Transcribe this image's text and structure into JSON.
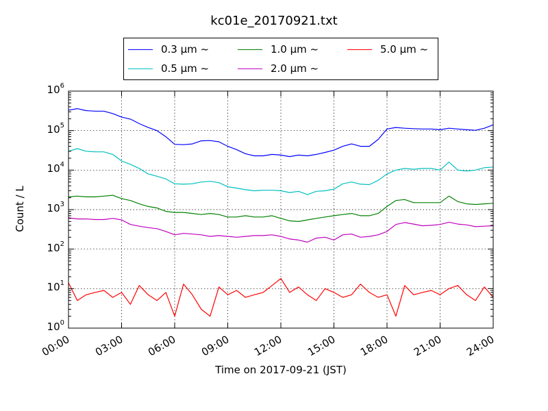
{
  "chart_data": {
    "type": "line",
    "title": "kc01e_20170921.txt",
    "xlabel": "Time on 2017-09-21 (JST)",
    "ylabel": "Count / L",
    "yscale": "log",
    "ylim": [
      1,
      1000000
    ],
    "xlim": [
      "00:00",
      "24:00"
    ],
    "grid": true,
    "legend_position": "top-center",
    "x_tick_labels": [
      "00:00",
      "03:00",
      "06:00",
      "09:00",
      "12:00",
      "15:00",
      "18:00",
      "21:00",
      "24:00"
    ],
    "y_tick_labels": [
      {
        "base": "10",
        "exp": "0"
      },
      {
        "base": "10",
        "exp": "1"
      },
      {
        "base": "10",
        "exp": "2"
      },
      {
        "base": "10",
        "exp": "3"
      },
      {
        "base": "10",
        "exp": "4"
      },
      {
        "base": "10",
        "exp": "5"
      },
      {
        "base": "10",
        "exp": "6"
      }
    ],
    "series": [
      {
        "name": "0.3 μm ~",
        "color": "#0000ff",
        "x": [
          "00:00",
          "00:30",
          "01:00",
          "01:30",
          "02:00",
          "02:30",
          "03:00",
          "03:30",
          "04:00",
          "04:30",
          "05:00",
          "05:30",
          "06:00",
          "06:30",
          "07:00",
          "07:30",
          "08:00",
          "08:30",
          "09:00",
          "09:30",
          "10:00",
          "10:30",
          "11:00",
          "11:30",
          "12:00",
          "12:30",
          "13:00",
          "13:30",
          "14:00",
          "14:30",
          "15:00",
          "15:30",
          "16:00",
          "16:30",
          "17:00",
          "17:30",
          "18:00",
          "18:30",
          "19:00",
          "19:30",
          "20:00",
          "20:30",
          "21:00",
          "21:30",
          "22:00",
          "22:30",
          "23:00",
          "23:30",
          "24:00"
        ],
        "y": [
          330000,
          360000,
          320000,
          310000,
          310000,
          270000,
          220000,
          195000,
          150000,
          120000,
          100000,
          70000,
          45000,
          44000,
          46000,
          55000,
          56000,
          52000,
          40000,
          33000,
          26000,
          23000,
          23000,
          25000,
          24000,
          22000,
          24000,
          23000,
          25000,
          28000,
          32000,
          40000,
          46000,
          40000,
          40000,
          60000,
          110000,
          120000,
          115000,
          112000,
          110000,
          110000,
          105000,
          115000,
          110000,
          105000,
          102000,
          115000,
          140000
        ]
      },
      {
        "name": "0.5 μm ~",
        "color": "#00bfbf",
        "x": [
          "00:00",
          "00:30",
          "01:00",
          "01:30",
          "02:00",
          "02:30",
          "03:00",
          "03:30",
          "04:00",
          "04:30",
          "05:00",
          "05:30",
          "06:00",
          "06:30",
          "07:00",
          "07:30",
          "08:00",
          "08:30",
          "09:00",
          "09:30",
          "10:00",
          "10:30",
          "11:00",
          "11:30",
          "12:00",
          "12:30",
          "13:00",
          "13:30",
          "14:00",
          "14:30",
          "15:00",
          "15:30",
          "16:00",
          "16:30",
          "17:00",
          "17:30",
          "18:00",
          "18:30",
          "19:00",
          "19:30",
          "20:00",
          "20:30",
          "21:00",
          "21:30",
          "22:00",
          "22:30",
          "23:00",
          "23:30",
          "24:00"
        ],
        "y": [
          30000,
          35000,
          30000,
          29000,
          29000,
          25000,
          17000,
          14000,
          11000,
          8000,
          7000,
          6000,
          4500,
          4400,
          4500,
          5000,
          5200,
          4800,
          3800,
          3500,
          3200,
          3000,
          3100,
          3100,
          3000,
          2700,
          2900,
          2400,
          2900,
          3000,
          3300,
          4500,
          5000,
          4400,
          4300,
          5500,
          8000,
          10000,
          11000,
          10500,
          11000,
          11000,
          10000,
          16000,
          10000,
          9500,
          10000,
          11500,
          12000
        ]
      },
      {
        "name": "1.0 μm ~",
        "color": "#008000",
        "x": [
          "00:00",
          "00:30",
          "01:00",
          "01:30",
          "02:00",
          "02:30",
          "03:00",
          "03:30",
          "04:00",
          "04:30",
          "05:00",
          "05:30",
          "06:00",
          "06:30",
          "07:00",
          "07:30",
          "08:00",
          "08:30",
          "09:00",
          "09:30",
          "10:00",
          "10:30",
          "11:00",
          "11:30",
          "12:00",
          "12:30",
          "13:00",
          "13:30",
          "14:00",
          "14:30",
          "15:00",
          "15:30",
          "16:00",
          "16:30",
          "17:00",
          "17:30",
          "18:00",
          "18:30",
          "19:00",
          "19:30",
          "20:00",
          "20:30",
          "21:00",
          "21:30",
          "22:00",
          "22:30",
          "23:00",
          "23:30",
          "24:00"
        ],
        "y": [
          2100,
          2200,
          2100,
          2100,
          2200,
          2300,
          1900,
          1700,
          1400,
          1200,
          1100,
          900,
          850,
          850,
          800,
          750,
          800,
          750,
          650,
          650,
          700,
          650,
          650,
          700,
          600,
          520,
          500,
          550,
          600,
          650,
          700,
          750,
          800,
          700,
          700,
          800,
          1200,
          1700,
          1800,
          1500,
          1500,
          1500,
          1500,
          2200,
          1600,
          1400,
          1350,
          1400,
          1450
        ]
      },
      {
        "name": "2.0 μm ~",
        "color": "#bf00bf",
        "x": [
          "00:00",
          "00:30",
          "01:00",
          "01:30",
          "02:00",
          "02:30",
          "03:00",
          "03:30",
          "04:00",
          "04:30",
          "05:00",
          "05:30",
          "06:00",
          "06:30",
          "07:00",
          "07:30",
          "08:00",
          "08:30",
          "09:00",
          "09:30",
          "10:00",
          "10:30",
          "11:00",
          "11:30",
          "12:00",
          "12:30",
          "13:00",
          "13:30",
          "14:00",
          "14:30",
          "15:00",
          "15:30",
          "16:00",
          "16:30",
          "17:00",
          "17:30",
          "18:00",
          "18:30",
          "19:00",
          "19:30",
          "20:00",
          "20:30",
          "21:00",
          "21:30",
          "22:00",
          "22:30",
          "23:00",
          "23:30",
          "24:00"
        ],
        "y": [
          620,
          580,
          580,
          560,
          560,
          600,
          550,
          420,
          380,
          350,
          330,
          280,
          230,
          250,
          240,
          230,
          210,
          220,
          210,
          200,
          210,
          220,
          220,
          230,
          210,
          180,
          170,
          150,
          190,
          200,
          170,
          230,
          240,
          200,
          210,
          230,
          280,
          420,
          470,
          430,
          390,
          400,
          420,
          480,
          430,
          410,
          370,
          380,
          390
        ]
      },
      {
        "name": "5.0 μm ~",
        "color": "#ff0000",
        "x": [
          "00:00",
          "00:30",
          "01:00",
          "01:30",
          "02:00",
          "02:30",
          "03:00",
          "03:30",
          "04:00",
          "04:30",
          "05:00",
          "05:30",
          "06:00",
          "06:30",
          "07:00",
          "07:30",
          "08:00",
          "08:30",
          "09:00",
          "09:30",
          "10:00",
          "10:30",
          "11:00",
          "11:30",
          "12:00",
          "12:30",
          "13:00",
          "13:30",
          "14:00",
          "14:30",
          "15:00",
          "15:30",
          "16:00",
          "16:30",
          "17:00",
          "17:30",
          "18:00",
          "18:30",
          "19:00",
          "19:30",
          "20:00",
          "20:30",
          "21:00",
          "21:30",
          "22:00",
          "22:30",
          "23:00",
          "23:30",
          "24:00"
        ],
        "y": [
          14,
          5,
          7,
          8,
          9,
          6,
          8,
          4,
          12,
          7,
          5,
          8,
          2,
          13,
          7,
          3,
          2,
          11,
          7,
          9,
          6,
          7,
          8,
          12,
          18,
          8,
          11,
          7,
          5,
          10,
          8,
          6,
          7,
          13,
          8,
          6,
          7,
          2,
          12,
          7,
          8,
          9,
          7,
          10,
          12,
          7,
          5,
          11,
          6
        ]
      }
    ]
  }
}
